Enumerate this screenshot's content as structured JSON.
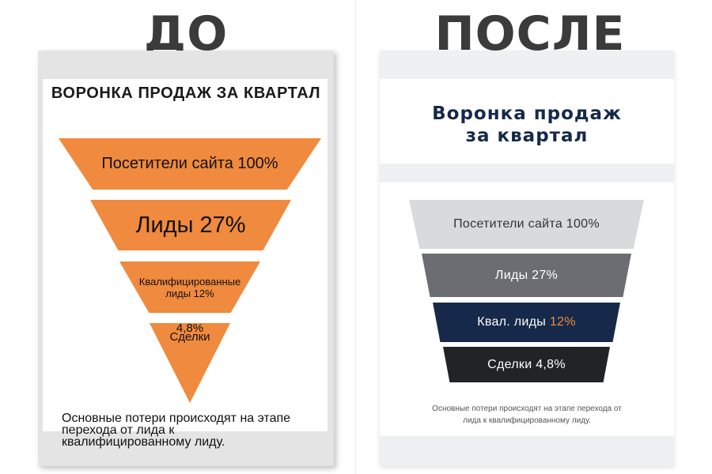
{
  "before": {
    "heading": "ДО",
    "title": "ВОРОНКА ПРОДАЖ ЗА КВАРТАЛ",
    "stages": [
      {
        "text": "Посетители сайта 100%"
      },
      {
        "text": "Лиды 27%"
      },
      {
        "line1": "Квалифицированные",
        "line2": "лиды 12%"
      },
      {
        "line1": "Сделки",
        "line2": "4,8%"
      }
    ],
    "note": "Основные потери происходят на этапе перехода от лида к квалифицированному лиду.",
    "color": "#f08a3e"
  },
  "after": {
    "heading": "ПОСЛЕ",
    "title_line1": "Воронка продаж",
    "title_line2": "за квартал",
    "stages": [
      {
        "text": "Посетители сайта 100%",
        "color": "#d9dade"
      },
      {
        "text": "Лиды 27%",
        "color": "#6b6d72"
      },
      {
        "label": "Квал. лиды",
        "value": "12%",
        "color": "#16294a",
        "value_color": "#f08a3e"
      },
      {
        "text": "Сделки 4,8%",
        "color": "#222325"
      }
    ],
    "note_line1": "Основные потери происходят на этапе перехода от",
    "note_line2": "лида к квалифицированному лиду."
  },
  "funnel_values": [
    {
      "stage": "Посетители сайта",
      "percent": 100
    },
    {
      "stage": "Лиды",
      "percent": 27
    },
    {
      "stage": "Квалифицированные лиды",
      "percent": 12
    },
    {
      "stage": "Сделки",
      "percent": 4.8
    }
  ]
}
